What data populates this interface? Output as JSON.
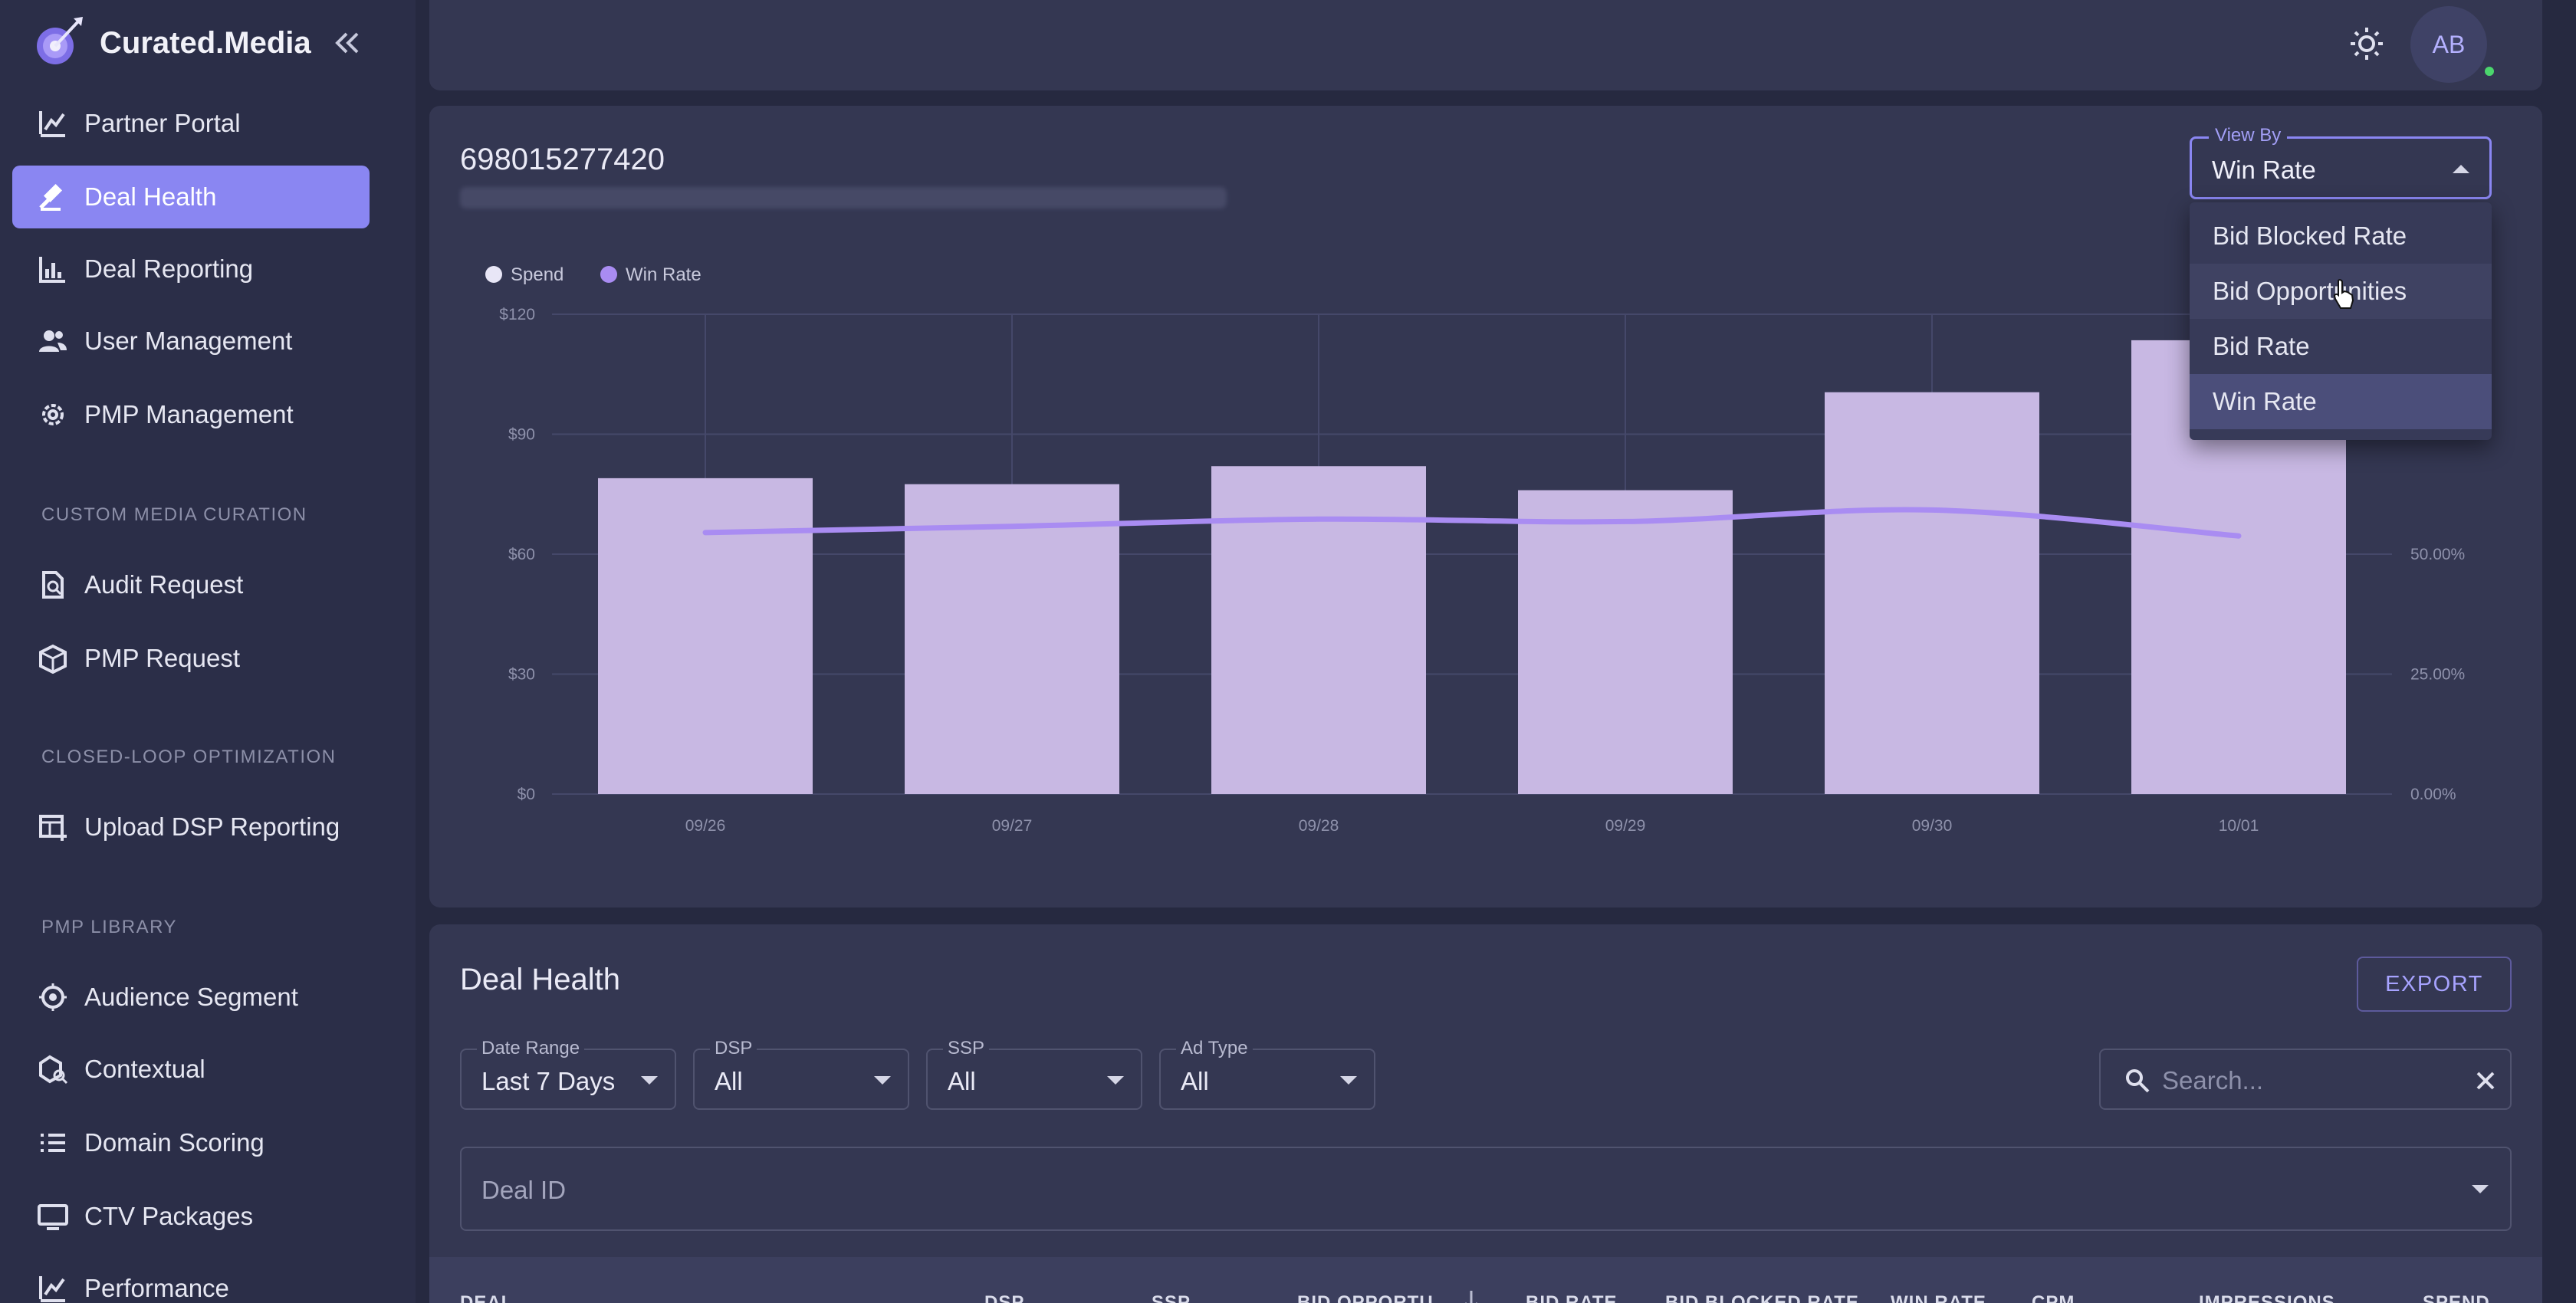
{
  "brand": {
    "name": "Curated.Media",
    "accent": "#8a86f2"
  },
  "sidebar": {
    "collapse_icon": "double-chevron-left-icon",
    "items": [
      {
        "label": "Partner Portal",
        "icon": "chart-icon",
        "active": false
      },
      {
        "label": "Deal Health",
        "icon": "gavel-icon",
        "active": true
      },
      {
        "label": "Deal Reporting",
        "icon": "bar-chart-icon",
        "active": false
      },
      {
        "label": "User Management",
        "icon": "users-icon",
        "active": false
      },
      {
        "label": "PMP Management",
        "icon": "gear-icon",
        "active": false
      }
    ],
    "sections": [
      {
        "title": "CUSTOM MEDIA CURATION",
        "items": [
          {
            "label": "Audit Request",
            "icon": "doc-search-icon"
          },
          {
            "label": "PMP Request",
            "icon": "cube-icon"
          }
        ]
      },
      {
        "title": "CLOSED-LOOP OPTIMIZATION",
        "items": [
          {
            "label": "Upload DSP Reporting",
            "icon": "table-upload-icon"
          }
        ]
      },
      {
        "title": "PMP LIBRARY",
        "items": [
          {
            "label": "Audience Segment",
            "icon": "target-icon"
          },
          {
            "label": "Contextual",
            "icon": "shapes-icon"
          },
          {
            "label": "Domain Scoring",
            "icon": "list-icon"
          },
          {
            "label": "CTV Packages",
            "icon": "monitor-icon"
          },
          {
            "label": "Performance",
            "icon": "chart-icon"
          }
        ]
      }
    ]
  },
  "topbar": {
    "avatar_initials": "AB",
    "theme_icon": "sun-icon",
    "status_color": "#4bd66d"
  },
  "chart_card": {
    "title": "698015277420",
    "view_by": {
      "label": "View By",
      "value": "Win Rate",
      "options": [
        "Bid Blocked Rate",
        "Bid Opportunities",
        "Bid Rate",
        "Win Rate"
      ],
      "hovered": "Bid Opportunities"
    }
  },
  "chart_data": {
    "type": "bar",
    "categories": [
      "09/26",
      "09/27",
      "09/28",
      "09/29",
      "09/30",
      "10/01"
    ],
    "series": [
      {
        "name": "Spend",
        "type": "bar",
        "axis": "left",
        "color": "#c8b8e3",
        "values": [
          79,
          77.5,
          82,
          76,
          100.5,
          113.5
        ]
      },
      {
        "name": "Win Rate",
        "type": "line",
        "axis": "right",
        "color": "#a98cf2",
        "values": [
          54.5,
          55.8,
          57.3,
          56.8,
          59.2,
          53.8
        ]
      }
    ],
    "left_ticks": [
      "$0",
      "$30",
      "$60",
      "$90",
      "$120"
    ],
    "right_ticks": [
      "0.00%",
      "25.00%",
      "50.00%"
    ],
    "ylim": [
      0,
      120
    ],
    "y2lim": [
      0,
      100
    ],
    "legend": "top-left",
    "grid": true
  },
  "health_card": {
    "title": "Deal Health",
    "export_label": "EXPORT",
    "filters": [
      {
        "label": "Date Range",
        "value": "Last 7 Days"
      },
      {
        "label": "DSP",
        "value": "All"
      },
      {
        "label": "SSP",
        "value": "All"
      },
      {
        "label": "Ad Type",
        "value": "All"
      }
    ],
    "search": {
      "placeholder": "Search..."
    },
    "deal_id_placeholder": "Deal ID",
    "columns": [
      "DEAL",
      "DSP",
      "SSP",
      "BID OPPORTU...",
      "BID RATE",
      "BID BLOCKED RATE",
      "WIN RATE",
      "CPM",
      "IMPRESSIONS",
      "SPEND"
    ],
    "sort_icon": "arrow-down-icon"
  }
}
